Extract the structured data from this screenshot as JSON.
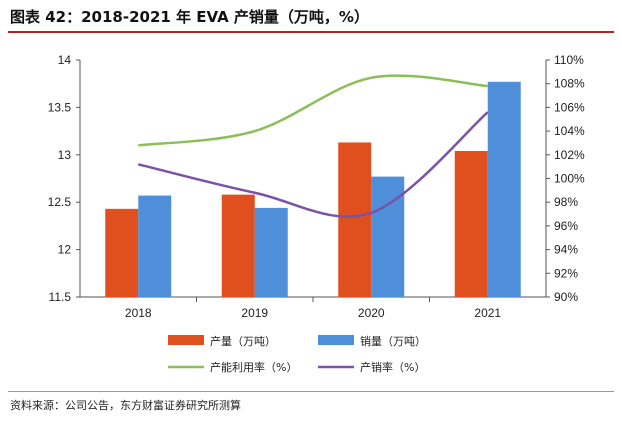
{
  "title": "图表 42：2018-2021 年 EVA 产销量（万吨，%）",
  "source": "资料来源：公司公告，东方财富证券研究所测算",
  "chart_data": {
    "type": "bar",
    "categories": [
      "2018",
      "2019",
      "2020",
      "2021"
    ],
    "ylim": [
      11.5,
      14
    ],
    "y_ticks": [
      "11.5",
      "12",
      "12.5",
      "13",
      "13.5",
      "14"
    ],
    "y2lim": [
      90,
      110
    ],
    "y2_ticks": [
      "90%",
      "92%",
      "94%",
      "96%",
      "98%",
      "100%",
      "102%",
      "104%",
      "106%",
      "108%",
      "110%"
    ],
    "grid": false,
    "legend_position": "bottom",
    "series": [
      {
        "name": "产量（万吨）",
        "type": "bar",
        "axis": "left",
        "color": "#e0501e",
        "values": [
          12.43,
          12.58,
          13.13,
          13.04
        ]
      },
      {
        "name": "销量（万吨）",
        "type": "bar",
        "axis": "left",
        "color": "#4f8fd9",
        "values": [
          12.57,
          12.44,
          12.77,
          13.77
        ]
      },
      {
        "name": "产能利用率（%）",
        "type": "line",
        "axis": "right",
        "color": "#8cbf5a",
        "values": [
          102.8,
          104.0,
          108.5,
          107.8
        ]
      },
      {
        "name": "产销率（%）",
        "type": "line",
        "axis": "right",
        "color": "#7a52a6",
        "values": [
          101.2,
          98.8,
          97.1,
          105.6
        ]
      }
    ]
  }
}
